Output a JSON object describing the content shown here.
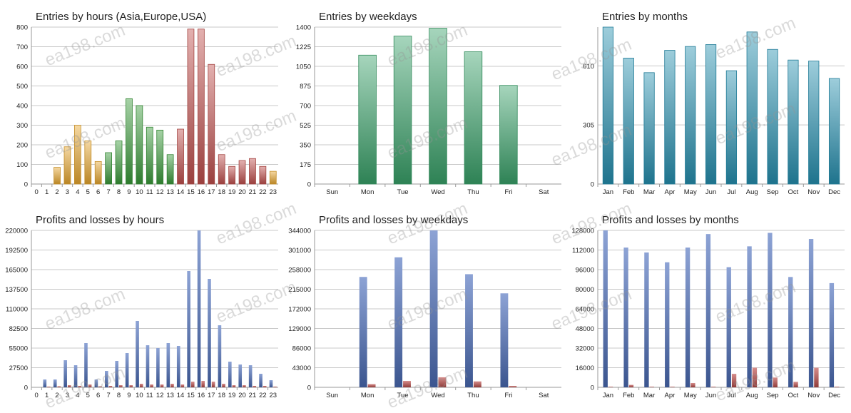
{
  "watermark": "ea198.com",
  "chart_data": [
    {
      "id": "entries-hours",
      "type": "bar",
      "title": "Entries by hours (Asia,Europe,USA)",
      "categories": [
        "0",
        "1",
        "2",
        "3",
        "4",
        "5",
        "6",
        "7",
        "8",
        "9",
        "10",
        "11",
        "12",
        "13",
        "14",
        "15",
        "16",
        "17",
        "18",
        "19",
        "20",
        "21",
        "22",
        "23"
      ],
      "values": [
        0,
        0,
        85,
        190,
        300,
        220,
        115,
        160,
        220,
        435,
        400,
        290,
        275,
        150,
        280,
        790,
        790,
        610,
        150,
        90,
        120,
        130,
        90,
        65
      ],
      "yticks": [
        "0",
        "100",
        "200",
        "300",
        "400",
        "500",
        "600",
        "700",
        "800"
      ],
      "ylim": [
        0,
        800
      ],
      "style": "gradient",
      "colors": [
        "#e8a830",
        "#e8a830",
        "#e8a830",
        "#e8a830",
        "#e8a830",
        "#e8a830",
        "#e8a830",
        "#3a9a3a",
        "#3a9a3a",
        "#3a9a3a",
        "#3a9a3a",
        "#3a9a3a",
        "#3a9a3a",
        "#3a9a3a",
        "#c0504d",
        "#c0504d",
        "#c0504d",
        "#c0504d",
        "#c0504d",
        "#c0504d",
        "#c0504d",
        "#c0504d",
        "#c0504d",
        "#e8a830"
      ],
      "grid": true
    },
    {
      "id": "entries-weekdays",
      "type": "bar",
      "title": "Entries by weekdays",
      "categories": [
        "Sun",
        "Mon",
        "Tue",
        "Wed",
        "Thu",
        "Fri",
        "Sat"
      ],
      "values": [
        0,
        1150,
        1320,
        1390,
        1180,
        880,
        0
      ],
      "yticks": [
        "0",
        "175",
        "350",
        "525",
        "700",
        "875",
        "1050",
        "1225",
        "1400"
      ],
      "ylim": [
        0,
        1400
      ],
      "style": "gradient",
      "colors": [
        "#3aa26a"
      ],
      "grid": true
    },
    {
      "id": "entries-months",
      "type": "bar",
      "title": "Entries by months",
      "categories": [
        "Jan",
        "Feb",
        "Mar",
        "Apr",
        "May",
        "Jun",
        "Jul",
        "Aug",
        "Sep",
        "Oct",
        "Nov",
        "Dec"
      ],
      "values": [
        810,
        650,
        575,
        690,
        710,
        720,
        585,
        785,
        695,
        640,
        635,
        545
      ],
      "yticks": [
        "0",
        "305",
        "610"
      ],
      "ylim": [
        0,
        810
      ],
      "style": "gradient",
      "colors": [
        "#2590b0"
      ],
      "grid": true
    },
    {
      "id": "pl-hours",
      "type": "bar",
      "title": "Profits and losses by hours",
      "categories": [
        "0",
        "1",
        "2",
        "3",
        "4",
        "5",
        "6",
        "7",
        "8",
        "9",
        "10",
        "11",
        "12",
        "13",
        "14",
        "15",
        "16",
        "17",
        "18",
        "19",
        "20",
        "21",
        "22",
        "23"
      ],
      "series": [
        {
          "values": [
            0,
            11000,
            11000,
            38000,
            31000,
            62000,
            11000,
            23000,
            37000,
            48000,
            93000,
            59000,
            55000,
            62000,
            58000,
            163000,
            220000,
            152000,
            87000,
            36000,
            32000,
            31000,
            19000,
            10000
          ]
        },
        {
          "values": [
            0,
            1000,
            1500,
            3000,
            2000,
            4000,
            1500,
            2000,
            3000,
            3000,
            5000,
            4000,
            4000,
            5000,
            4000,
            8000,
            9000,
            8000,
            5000,
            3000,
            3000,
            2000,
            2000,
            1000
          ]
        }
      ],
      "yticks": [
        "0",
        "27500",
        "55000",
        "82500",
        "110000",
        "137500",
        "165000",
        "192500",
        "220000"
      ],
      "ylim": [
        0,
        220000
      ],
      "colors": [
        "#4f71be",
        "#c0504d"
      ],
      "grid": true
    },
    {
      "id": "pl-weekdays",
      "type": "bar",
      "title": "Profits and losses by weekdays",
      "categories": [
        "Sun",
        "Mon",
        "Tue",
        "Wed",
        "Thu",
        "Fri",
        "Sat"
      ],
      "series": [
        {
          "values": [
            0,
            242000,
            285000,
            344000,
            248000,
            206000,
            0
          ]
        },
        {
          "values": [
            0,
            7000,
            14000,
            22000,
            13000,
            3000,
            0
          ]
        }
      ],
      "yticks": [
        "0",
        "43000",
        "86000",
        "129000",
        "172000",
        "215000",
        "258000",
        "301000",
        "344000"
      ],
      "ylim": [
        0,
        344000
      ],
      "colors": [
        "#4f71be",
        "#c0504d"
      ],
      "grid": true
    },
    {
      "id": "pl-months",
      "type": "bar",
      "title": "Profits and losses by months",
      "categories": [
        "Jan",
        "Feb",
        "Mar",
        "Apr",
        "May",
        "Jun",
        "Jul",
        "Aug",
        "Sep",
        "Oct",
        "Nov",
        "Dec"
      ],
      "series": [
        {
          "values": [
            128000,
            114000,
            110000,
            102000,
            114000,
            125000,
            98000,
            115000,
            126000,
            90000,
            121000,
            85000
          ]
        },
        {
          "values": [
            500,
            2000,
            500,
            500,
            3500,
            500,
            11000,
            16000,
            8000,
            4500,
            16000,
            500
          ]
        }
      ],
      "yticks": [
        "0",
        "16000",
        "32000",
        "48000",
        "64000",
        "80000",
        "96000",
        "112000",
        "128000"
      ],
      "ylim": [
        0,
        128000
      ],
      "colors": [
        "#4f71be",
        "#c0504d"
      ],
      "grid": true
    }
  ]
}
